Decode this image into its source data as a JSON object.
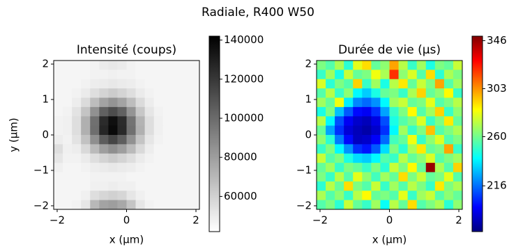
{
  "title": "Radiale, R400 W50",
  "chart_data": [
    {
      "type": "heatmap",
      "title": "Intensité (coups)",
      "xlabel": "x (µm)",
      "ylabel": "y (µm)",
      "xlim": [
        -2.1,
        2.1
      ],
      "ylim": [
        -2.1,
        2.1
      ],
      "xticks": [
        {
          "value": -2,
          "label": "−2"
        },
        0,
        2
      ],
      "yticks": [
        {
          "value": -2,
          "label": "−2"
        },
        {
          "value": -1,
          "label": "−1"
        },
        0,
        1,
        2
      ],
      "colormap": "gray_r",
      "clim": [
        42000,
        142000
      ],
      "cticks": [
        60000,
        80000,
        100000,
        120000,
        140000
      ],
      "values": [
        [
          46000,
          46000,
          46000,
          46000,
          47000,
          50000,
          51000,
          50000,
          47000,
          46000,
          46000,
          46000,
          46000,
          46000,
          46000,
          46000
        ],
        [
          46000,
          46000,
          46000,
          46000,
          47000,
          47000,
          48000,
          47000,
          47000,
          46000,
          46000,
          46000,
          46000,
          46000,
          46000,
          46000
        ],
        [
          46000,
          46000,
          46000,
          47000,
          49000,
          50000,
          51000,
          50000,
          49000,
          47000,
          46000,
          46000,
          46000,
          46000,
          46000,
          46000
        ],
        [
          46000,
          46000,
          47000,
          50000,
          55000,
          59000,
          62000,
          59000,
          55000,
          50000,
          47000,
          46000,
          46000,
          46000,
          46000,
          46000
        ],
        [
          46000,
          46000,
          49000,
          56000,
          68000,
          78000,
          84000,
          78000,
          68000,
          56000,
          49000,
          46000,
          46000,
          46000,
          46000,
          46000
        ],
        [
          46000,
          47000,
          53000,
          65000,
          85000,
          104000,
          112000,
          104000,
          84000,
          64000,
          52000,
          47000,
          46000,
          46000,
          46000,
          46000
        ],
        [
          47000,
          48000,
          55000,
          73000,
          98000,
          125000,
          136000,
          125000,
          97000,
          72000,
          55000,
          48000,
          46000,
          46000,
          46000,
          46000
        ],
        [
          47000,
          48000,
          55000,
          73000,
          99000,
          127000,
          138000,
          126000,
          98000,
          73000,
          55000,
          48000,
          46000,
          46000,
          46000,
          46000
        ],
        [
          49000,
          47000,
          53000,
          66000,
          86000,
          106000,
          115000,
          105000,
          85000,
          65000,
          52000,
          47000,
          46000,
          46000,
          46000,
          46000
        ],
        [
          55000,
          48000,
          49000,
          57000,
          69000,
          80000,
          86000,
          80000,
          69000,
          57000,
          49000,
          46000,
          46000,
          46000,
          46000,
          46000
        ],
        [
          52000,
          47000,
          47000,
          50000,
          55000,
          59000,
          62000,
          59000,
          55000,
          50000,
          47000,
          46000,
          46000,
          46000,
          46000,
          46000
        ],
        [
          48000,
          46000,
          46000,
          47000,
          49000,
          50000,
          51000,
          50000,
          49000,
          47000,
          46000,
          46000,
          46000,
          46000,
          46000,
          46000
        ],
        [
          46000,
          46000,
          46000,
          46000,
          47000,
          47000,
          47000,
          47000,
          46000,
          46000,
          46000,
          46000,
          46000,
          46000,
          46000,
          46000
        ],
        [
          46000,
          46000,
          46000,
          46000,
          48000,
          48000,
          49000,
          48000,
          48000,
          46000,
          46000,
          46000,
          46000,
          46000,
          46000,
          46000
        ],
        [
          46000,
          46000,
          46000,
          48000,
          55000,
          58000,
          60000,
          58000,
          52000,
          48000,
          46000,
          46000,
          46000,
          46000,
          46000,
          46000
        ],
        [
          46000,
          46000,
          47000,
          52000,
          70000,
          78000,
          80000,
          76000,
          65000,
          52000,
          47000,
          46000,
          46000,
          46000,
          46000,
          46000
        ]
      ]
    },
    {
      "type": "heatmap",
      "title": "Durée de vie (µs)",
      "xlabel": "x (µm)",
      "xlim": [
        -2.1,
        2.1
      ],
      "ylim": [
        -2.1,
        2.1
      ],
      "xticks": [
        {
          "value": -2,
          "label": "−2"
        },
        0,
        2
      ],
      "yticks": [
        {
          "value": -2,
          "label": "−2"
        },
        {
          "value": -1,
          "label": "−1"
        },
        0,
        1,
        2
      ],
      "colormap": "jet",
      "clim": [
        175,
        350
      ],
      "cticks": [
        216,
        260,
        303,
        346
      ],
      "values": [
        [
          262,
          255,
          270,
          248,
          280,
          290,
          258,
          265,
          300,
          272,
          250,
          268,
          245,
          262,
          258,
          275
        ],
        [
          250,
          268,
          245,
          275,
          258,
          262,
          282,
          270,
          320,
          265,
          278,
          255,
          290,
          248,
          270,
          262
        ],
        [
          278,
          248,
          262,
          255,
          292,
          250,
          268,
          245,
          272,
          288,
          258,
          275,
          262,
          300,
          255,
          268
        ],
        [
          255,
          272,
          250,
          265,
          240,
          232,
          245,
          258,
          262,
          250,
          270,
          292,
          258,
          265,
          285,
          250
        ],
        [
          268,
          258,
          282,
          238,
          220,
          215,
          222,
          240,
          268,
          275,
          258,
          262,
          280,
          255,
          262,
          272
        ],
        [
          245,
          262,
          230,
          212,
          198,
          195,
          205,
          225,
          250,
          262,
          285,
          255,
          268,
          292,
          250,
          265
        ],
        [
          272,
          240,
          210,
          195,
          188,
          185,
          192,
          210,
          245,
          255,
          262,
          278,
          250,
          262,
          288,
          258
        ],
        [
          258,
          225,
          205,
          190,
          185,
          182,
          188,
          205,
          240,
          268,
          250,
          262,
          295,
          255,
          262,
          270
        ],
        [
          265,
          248,
          218,
          198,
          186,
          188,
          196,
          215,
          252,
          258,
          282,
          250,
          265,
          278,
          255,
          262
        ],
        [
          250,
          262,
          240,
          222,
          205,
          200,
          212,
          235,
          262,
          248,
          270,
          288,
          258,
          262,
          300,
          250
        ],
        [
          275,
          255,
          262,
          245,
          235,
          232,
          240,
          255,
          250,
          272,
          258,
          265,
          278,
          255,
          262,
          268
        ],
        [
          258,
          268,
          250,
          262,
          258,
          250,
          262,
          248,
          275,
          262,
          285,
          258,
          346,
          270,
          255,
          292
        ],
        [
          262,
          250,
          272,
          255,
          280,
          265,
          252,
          268,
          258,
          290,
          262,
          275,
          258,
          262,
          280,
          255
        ],
        [
          248,
          272,
          258,
          290,
          262,
          255,
          275,
          250,
          268,
          255,
          272,
          262,
          250,
          288,
          262,
          270
        ],
        [
          270,
          255,
          265,
          250,
          272,
          285,
          258,
          262,
          255,
          280,
          250,
          268,
          275,
          255,
          265,
          258
        ],
        [
          255,
          262,
          248,
          275,
          258,
          250,
          268,
          242,
          272,
          258,
          290,
          255,
          262,
          270,
          248,
          265
        ]
      ]
    }
  ]
}
